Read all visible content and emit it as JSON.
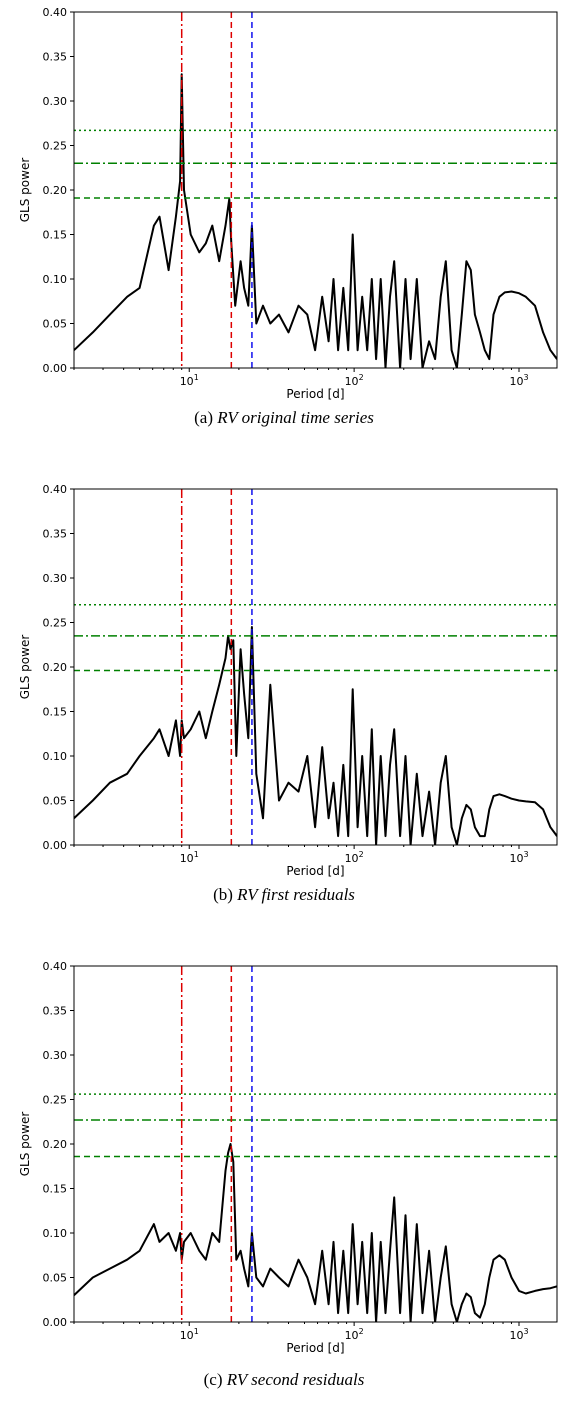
{
  "chart_data": [
    {
      "type": "line",
      "panel_label": "(a)",
      "caption": "RV original time series",
      "xlabel": "Period [d]",
      "ylabel": "GLS power",
      "xscale": "log",
      "xlim": [
        2,
        1700
      ],
      "ylim": [
        0,
        0.4
      ],
      "yticks": [
        "0.00",
        "0.05",
        "0.10",
        "0.15",
        "0.20",
        "0.25",
        "0.30",
        "0.35",
        "0.40"
      ],
      "xticks": [
        {
          "base": "10",
          "exp": "1",
          "value": 10
        },
        {
          "base": "10",
          "exp": "2",
          "value": 100
        },
        {
          "base": "10",
          "exp": "3",
          "value": 1000
        }
      ],
      "vlines": [
        {
          "x": 9.0,
          "color": "#dd0000",
          "style": "dashdot"
        },
        {
          "x": 18.0,
          "color": "#dd0000",
          "style": "dashed"
        },
        {
          "x": 24.0,
          "color": "#1010ee",
          "style": "dashed"
        }
      ],
      "hlines": [
        {
          "y": 0.267,
          "color": "#008000",
          "style": "dotted"
        },
        {
          "y": 0.23,
          "color": "#008000",
          "style": "dashdot"
        },
        {
          "y": 0.191,
          "color": "#008000",
          "style": "dashed"
        }
      ],
      "series": [
        {
          "x": [
            2,
            2.6,
            3.3,
            4.2,
            5.0,
            6.1,
            6.6,
            7.5,
            8.3,
            8.8,
            9.0,
            9.3,
            10.2,
            11.5,
            12.6,
            13.8,
            15.2,
            16.6,
            17.5,
            18.0,
            19.0,
            20.5,
            21.5,
            22.8,
            24.0,
            25.5,
            28,
            31,
            35,
            40,
            46,
            52,
            58,
            64,
            70,
            75,
            80,
            86,
            92,
            98,
            105,
            112,
            120,
            128,
            136,
            145,
            155,
            165,
            175,
            190,
            205,
            220,
            240,
            260,
            285,
            310,
            335,
            360,
            390,
            420,
            450,
            480,
            510,
            540,
            580,
            620,
            660,
            700,
            760,
            820,
            900,
            1000,
            1100,
            1250,
            1400,
            1550,
            1700
          ],
          "y": [
            0.02,
            0.04,
            0.06,
            0.08,
            0.09,
            0.16,
            0.17,
            0.11,
            0.17,
            0.21,
            0.33,
            0.2,
            0.15,
            0.13,
            0.14,
            0.16,
            0.12,
            0.16,
            0.19,
            0.14,
            0.07,
            0.12,
            0.09,
            0.07,
            0.16,
            0.05,
            0.07,
            0.05,
            0.06,
            0.04,
            0.07,
            0.06,
            0.02,
            0.08,
            0.03,
            0.1,
            0.02,
            0.09,
            0.02,
            0.15,
            0.02,
            0.08,
            0.02,
            0.1,
            0.01,
            0.1,
            0.0,
            0.08,
            0.12,
            0.0,
            0.1,
            0.01,
            0.1,
            0.0,
            0.03,
            0.01,
            0.08,
            0.12,
            0.02,
            0.0,
            0.06,
            0.12,
            0.11,
            0.06,
            0.04,
            0.02,
            0.01,
            0.06,
            0.08,
            0.085,
            0.086,
            0.084,
            0.08,
            0.07,
            0.04,
            0.02,
            0.01
          ],
          "color": "#000000"
        }
      ]
    },
    {
      "type": "line",
      "panel_label": "(b)",
      "caption": "RV first residuals",
      "xlabel": "Period [d]",
      "ylabel": "GLS power",
      "xscale": "log",
      "xlim": [
        2,
        1700
      ],
      "ylim": [
        0,
        0.4
      ],
      "yticks": [
        "0.00",
        "0.05",
        "0.10",
        "0.15",
        "0.20",
        "0.25",
        "0.30",
        "0.35",
        "0.40"
      ],
      "xticks": [
        {
          "base": "10",
          "exp": "1",
          "value": 10
        },
        {
          "base": "10",
          "exp": "2",
          "value": 100
        },
        {
          "base": "10",
          "exp": "3",
          "value": 1000
        }
      ],
      "vlines": [
        {
          "x": 9.0,
          "color": "#dd0000",
          "style": "dashdot"
        },
        {
          "x": 18.0,
          "color": "#dd0000",
          "style": "dashed"
        },
        {
          "x": 24.0,
          "color": "#1010ee",
          "style": "dashed"
        }
      ],
      "hlines": [
        {
          "y": 0.27,
          "color": "#008000",
          "style": "dotted"
        },
        {
          "y": 0.235,
          "color": "#008000",
          "style": "dashdot"
        },
        {
          "y": 0.196,
          "color": "#008000",
          "style": "dashed"
        }
      ],
      "series": [
        {
          "x": [
            2,
            2.6,
            3.3,
            4.2,
            5.0,
            6.1,
            6.6,
            7.5,
            8.3,
            8.8,
            9.0,
            9.3,
            10.2,
            11.5,
            12.6,
            13.8,
            15.2,
            16.6,
            17.2,
            17.8,
            18.5,
            19.3,
            20.5,
            21.5,
            22.8,
            24.0,
            25.5,
            28,
            31,
            35,
            40,
            46,
            52,
            58,
            64,
            70,
            75,
            80,
            86,
            92,
            98,
            105,
            112,
            120,
            128,
            136,
            145,
            155,
            165,
            175,
            190,
            205,
            220,
            240,
            260,
            285,
            310,
            335,
            360,
            390,
            420,
            450,
            480,
            510,
            540,
            580,
            620,
            660,
            700,
            760,
            820,
            900,
            1000,
            1100,
            1250,
            1400,
            1550,
            1700
          ],
          "y": [
            0.03,
            0.05,
            0.07,
            0.08,
            0.1,
            0.12,
            0.13,
            0.1,
            0.14,
            0.1,
            0.14,
            0.12,
            0.13,
            0.15,
            0.12,
            0.15,
            0.18,
            0.21,
            0.235,
            0.22,
            0.23,
            0.1,
            0.22,
            0.17,
            0.12,
            0.245,
            0.08,
            0.03,
            0.18,
            0.05,
            0.07,
            0.06,
            0.1,
            0.02,
            0.11,
            0.03,
            0.07,
            0.01,
            0.09,
            0.01,
            0.175,
            0.02,
            0.1,
            0.01,
            0.13,
            0.0,
            0.1,
            0.01,
            0.09,
            0.13,
            0.01,
            0.1,
            0.0,
            0.08,
            0.01,
            0.06,
            0.0,
            0.07,
            0.1,
            0.02,
            0.0,
            0.03,
            0.045,
            0.04,
            0.02,
            0.01,
            0.01,
            0.04,
            0.055,
            0.057,
            0.055,
            0.052,
            0.05,
            0.049,
            0.048,
            0.04,
            0.02,
            0.01
          ],
          "color": "#000000"
        }
      ]
    },
    {
      "type": "line",
      "panel_label": "(c)",
      "caption": "RV second residuals",
      "xlabel": "Period [d]",
      "ylabel": "GLS power",
      "xscale": "log",
      "xlim": [
        2,
        1700
      ],
      "ylim": [
        0,
        0.4
      ],
      "yticks": [
        "0.00",
        "0.05",
        "0.10",
        "0.15",
        "0.20",
        "0.25",
        "0.30",
        "0.35",
        "0.40"
      ],
      "xticks": [
        {
          "base": "10",
          "exp": "1",
          "value": 10
        },
        {
          "base": "10",
          "exp": "2",
          "value": 100
        },
        {
          "base": "10",
          "exp": "3",
          "value": 1000
        }
      ],
      "vlines": [
        {
          "x": 9.0,
          "color": "#dd0000",
          "style": "dashdot"
        },
        {
          "x": 18.0,
          "color": "#dd0000",
          "style": "dashed"
        },
        {
          "x": 24.0,
          "color": "#1010ee",
          "style": "dashed"
        }
      ],
      "hlines": [
        {
          "y": 0.256,
          "color": "#008000",
          "style": "dotted"
        },
        {
          "y": 0.227,
          "color": "#008000",
          "style": "dashdot"
        },
        {
          "y": 0.186,
          "color": "#008000",
          "style": "dashed"
        }
      ],
      "series": [
        {
          "x": [
            2,
            2.6,
            3.3,
            4.2,
            5.0,
            6.1,
            6.6,
            7.5,
            8.3,
            8.8,
            9.0,
            9.3,
            10.2,
            11.5,
            12.6,
            13.8,
            15.2,
            16.6,
            17.2,
            17.8,
            18.5,
            19.3,
            20.5,
            21.5,
            22.8,
            24.0,
            25.5,
            28,
            31,
            35,
            40,
            46,
            52,
            58,
            64,
            70,
            75,
            80,
            86,
            92,
            98,
            105,
            112,
            120,
            128,
            136,
            145,
            155,
            165,
            175,
            190,
            205,
            220,
            240,
            260,
            285,
            310,
            335,
            360,
            390,
            420,
            450,
            480,
            510,
            540,
            580,
            620,
            660,
            700,
            760,
            820,
            900,
            1000,
            1100,
            1250,
            1400,
            1550,
            1700
          ],
          "y": [
            0.03,
            0.05,
            0.06,
            0.07,
            0.08,
            0.11,
            0.09,
            0.1,
            0.08,
            0.1,
            0.07,
            0.09,
            0.1,
            0.08,
            0.07,
            0.1,
            0.09,
            0.17,
            0.19,
            0.2,
            0.18,
            0.07,
            0.08,
            0.06,
            0.04,
            0.1,
            0.05,
            0.04,
            0.06,
            0.05,
            0.04,
            0.07,
            0.05,
            0.02,
            0.08,
            0.02,
            0.09,
            0.01,
            0.08,
            0.01,
            0.11,
            0.02,
            0.09,
            0.01,
            0.1,
            0.0,
            0.09,
            0.01,
            0.08,
            0.14,
            0.01,
            0.12,
            0.0,
            0.11,
            0.01,
            0.08,
            0.0,
            0.05,
            0.085,
            0.02,
            0.0,
            0.02,
            0.032,
            0.028,
            0.01,
            0.005,
            0.02,
            0.05,
            0.07,
            0.075,
            0.07,
            0.05,
            0.035,
            0.032,
            0.035,
            0.037,
            0.038,
            0.04
          ],
          "color": "#000000"
        }
      ]
    }
  ]
}
